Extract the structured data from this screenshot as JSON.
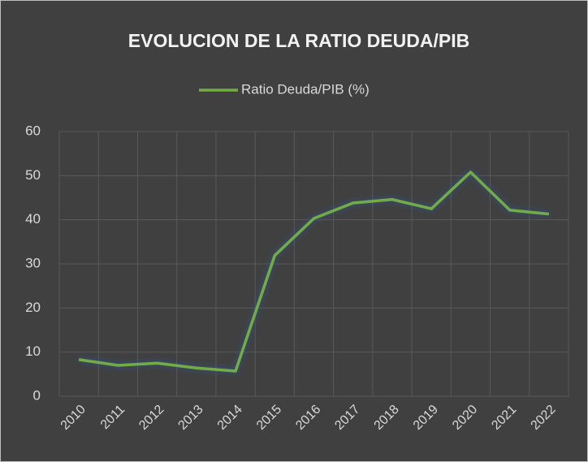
{
  "chart_data": {
    "type": "line",
    "title": "EVOLUCION DE LA RATIO DEUDA/PIB",
    "categories": [
      "2010",
      "2011",
      "2012",
      "2013",
      "2014",
      "2015",
      "2016",
      "2017",
      "2018",
      "2019",
      "2020",
      "2021",
      "2022"
    ],
    "series": [
      {
        "name": "Ratio Deuda/PIB (%)",
        "color": "#70ad47",
        "values": [
          8.3,
          7.0,
          7.5,
          6.4,
          5.7,
          31.9,
          40.3,
          43.8,
          44.6,
          42.5,
          50.8,
          42.2,
          41.3
        ]
      }
    ],
    "ylim": [
      0,
      60
    ],
    "yticks": [
      0,
      10,
      20,
      30,
      40,
      50,
      60
    ],
    "grid": true,
    "legend": "top"
  }
}
